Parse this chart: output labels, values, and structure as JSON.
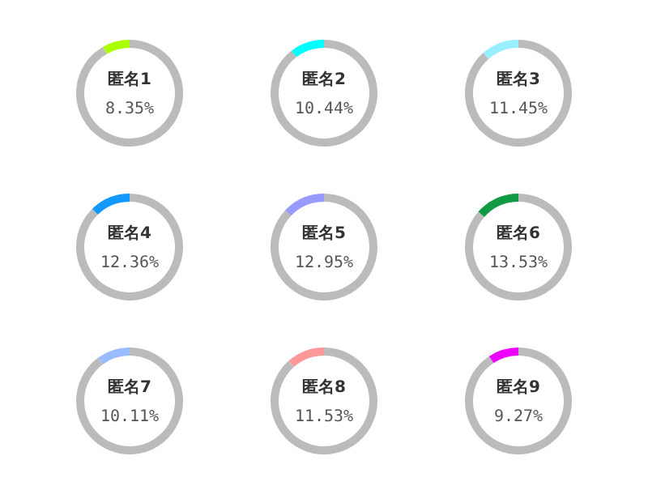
{
  "chart_data": [
    {
      "type": "donut",
      "categories": [
        "匿名1",
        null
      ],
      "values": [
        8.35,
        91.65
      ],
      "colors": [
        "#aaff00",
        "#bbbbbb"
      ],
      "value_labels": [
        "8.35%",
        null
      ]
    },
    {
      "type": "donut",
      "categories": [
        "匿名2",
        null
      ],
      "values": [
        10.44,
        89.56
      ],
      "colors": [
        "#00ffff",
        "#bbbbbb"
      ],
      "value_labels": [
        "10.44%",
        null
      ]
    },
    {
      "type": "donut",
      "categories": [
        "匿名3",
        null
      ],
      "values": [
        11.45,
        88.55
      ],
      "colors": [
        "#99eeff",
        "#bbbbbb"
      ],
      "value_labels": [
        "11.45%",
        null
      ]
    },
    {
      "type": "donut",
      "categories": [
        "匿名4",
        null
      ],
      "values": [
        12.36,
        87.64
      ],
      "colors": [
        "#1199ff",
        "#bbbbbb"
      ],
      "value_labels": [
        "12.36%",
        null
      ]
    },
    {
      "type": "donut",
      "categories": [
        "匿名5",
        null
      ],
      "values": [
        12.95,
        87.05
      ],
      "colors": [
        "#9999ff",
        "#bbbbbb"
      ],
      "value_labels": [
        "12.95%",
        null
      ]
    },
    {
      "type": "donut",
      "categories": [
        "匿名6",
        null
      ],
      "values": [
        13.53,
        86.47
      ],
      "colors": [
        "#119944",
        "#bbbbbb"
      ],
      "value_labels": [
        "13.53%",
        null
      ]
    },
    {
      "type": "donut",
      "categories": [
        "匿名7",
        null
      ],
      "values": [
        10.11,
        89.89
      ],
      "colors": [
        "#99bbff",
        "#bbbbbb"
      ],
      "value_labels": [
        "10.11%",
        null
      ]
    },
    {
      "type": "donut",
      "categories": [
        "匿名8",
        null
      ],
      "values": [
        11.53,
        88.47
      ],
      "colors": [
        "#ff9999",
        "#bbbbbb"
      ],
      "value_labels": [
        "11.53%",
        null
      ]
    },
    {
      "type": "donut",
      "categories": [
        "匿名9",
        null
      ],
      "values": [
        9.27,
        90.73
      ],
      "colors": [
        "#ee00ff",
        "#bbbbbb"
      ],
      "value_labels": [
        "9.27%",
        null
      ]
    }
  ]
}
